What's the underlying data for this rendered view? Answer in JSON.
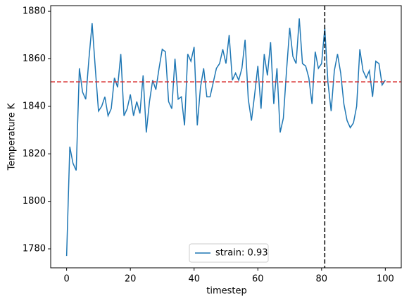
{
  "chart_data": {
    "type": "line",
    "xlabel": "timestep",
    "ylabel": "Temperature K",
    "x": [
      0,
      1,
      2,
      3,
      4,
      5,
      6,
      7,
      8,
      9,
      10,
      11,
      12,
      13,
      14,
      15,
      16,
      17,
      18,
      19,
      20,
      21,
      22,
      23,
      24,
      25,
      26,
      27,
      28,
      29,
      30,
      31,
      32,
      33,
      34,
      35,
      36,
      37,
      38,
      39,
      40,
      41,
      42,
      43,
      44,
      45,
      46,
      47,
      48,
      49,
      50,
      51,
      52,
      53,
      54,
      55,
      56,
      57,
      58,
      59,
      60,
      61,
      62,
      63,
      64,
      65,
      66,
      67,
      68,
      69,
      70,
      71,
      72,
      73,
      74,
      75,
      76,
      77,
      78,
      79,
      80,
      81,
      82,
      83,
      84,
      85,
      86,
      87,
      88,
      89,
      90,
      91,
      92,
      93,
      94,
      95,
      96,
      97,
      98,
      99,
      100
    ],
    "series": [
      {
        "name": "strain: 0.93",
        "color": "#1f77b4",
        "values": [
          1777,
          1823,
          1816,
          1813,
          1856,
          1846,
          1843,
          1860,
          1875,
          1856,
          1838,
          1840,
          1844,
          1836,
          1839,
          1852,
          1848,
          1862,
          1836,
          1839,
          1845,
          1836,
          1842,
          1837,
          1853,
          1829,
          1842,
          1851,
          1847,
          1856,
          1864,
          1863,
          1842,
          1839,
          1860,
          1843,
          1844,
          1832,
          1862,
          1859,
          1865,
          1832,
          1848,
          1856,
          1844,
          1844,
          1850,
          1856,
          1858,
          1864,
          1858,
          1870,
          1851,
          1854,
          1851,
          1856,
          1868,
          1843,
          1834,
          1845,
          1857,
          1839,
          1862,
          1853,
          1867,
          1841,
          1856,
          1829,
          1835,
          1855,
          1873,
          1861,
          1858,
          1877,
          1858,
          1857,
          1852,
          1841,
          1863,
          1856,
          1858,
          1873,
          1850,
          1838,
          1855,
          1862,
          1854,
          1841,
          1834,
          1831,
          1833,
          1840,
          1864,
          1855,
          1852,
          1855,
          1844,
          1859,
          1858,
          1849,
          1851
        ]
      }
    ],
    "hline": {
      "value": 1850.3,
      "color": "#d62728"
    },
    "vline": {
      "value": 81,
      "color": "#000000"
    },
    "xlim": [
      -5,
      105
    ],
    "ylim": [
      1772,
      1882.4
    ],
    "xticks": [
      0,
      20,
      40,
      60,
      80,
      100
    ],
    "yticks": [
      1780,
      1800,
      1820,
      1840,
      1860,
      1880
    ],
    "legend": "lower center",
    "grid": false
  }
}
